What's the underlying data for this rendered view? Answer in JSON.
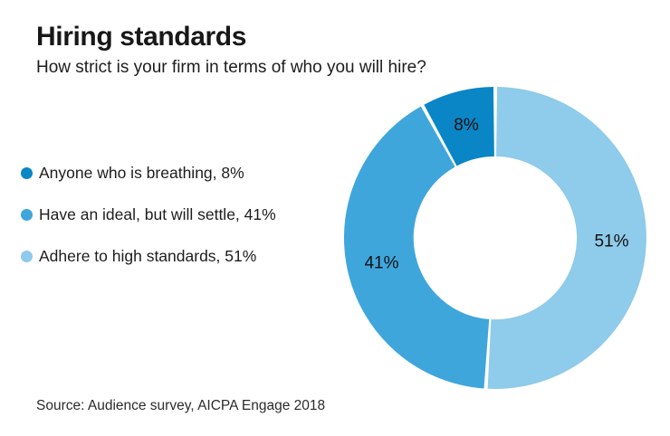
{
  "header": {
    "title": "Hiring standards",
    "subtitle": "How strict is your firm in terms of who you will hire?"
  },
  "legend": {
    "position": "left",
    "items": [
      {
        "label": "Anyone who is breathing, 8%",
        "color": "#0a86c6"
      },
      {
        "label": "Have an ideal, but will settle, 41%",
        "color": "#3fa6dc"
      },
      {
        "label": "Adhere to high standards, 51%",
        "color": "#8fcbea"
      }
    ]
  },
  "chart_data": {
    "type": "pie",
    "subtype": "donut",
    "title": "Hiring standards",
    "question": "How strict is your firm in terms of who you will hire?",
    "start_angle_deg": 0,
    "direction": "clockwise",
    "donut_hole_ratio": 0.77,
    "gap_between_slices_deg": 1.4,
    "legend_position": "left",
    "slices": [
      {
        "id": "adhere-to-high-standards",
        "label": "Adhere to high standards",
        "value": 51,
        "display": "51%",
        "color": "#8fcbea"
      },
      {
        "id": "have-an-ideal-but-will-settle",
        "label": "Have an ideal, but will settle",
        "value": 41,
        "display": "41%",
        "color": "#3fa6dc"
      },
      {
        "id": "anyone-who-is-breathing",
        "label": "Anyone who is breathing",
        "value": 8,
        "display": "8%",
        "color": "#0a86c6"
      }
    ]
  },
  "source": {
    "text": "Source: Audience survey, AICPA Engage 2018"
  }
}
